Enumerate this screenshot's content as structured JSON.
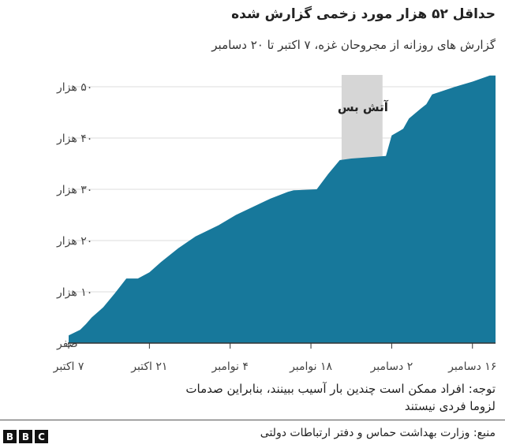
{
  "chart_data": {
    "type": "area",
    "title": "حداقل ۵۲ هزار مورد زخمی گزارش شده",
    "subtitle": "گزارش های روزانه از مجروحان غزه، ۷ اکتبر تا ۲۰ دسامبر",
    "color": "#17789b",
    "xlim": [
      "2023-10-07",
      "2023-12-20"
    ],
    "ylim": [
      0,
      55000
    ],
    "grid": true,
    "y_ticks": [
      {
        "value": 0,
        "label": "صفر"
      },
      {
        "value": 10000,
        "label": "۱۰ هزار"
      },
      {
        "value": 20000,
        "label": "۲۰ هزار"
      },
      {
        "value": 30000,
        "label": "۳۰ هزار"
      },
      {
        "value": 40000,
        "label": "۴۰ هزار"
      },
      {
        "value": 50000,
        "label": "۵۰ هزار"
      }
    ],
    "x_ticks": [
      {
        "date": "2023-10-07",
        "label": "۷ اکتبر"
      },
      {
        "date": "2023-10-21",
        "label": "۲۱ اکتبر"
      },
      {
        "date": "2023-11-04",
        "label": "۴ نوامبر"
      },
      {
        "date": "2023-11-18",
        "label": "۱۸ نوامبر"
      },
      {
        "date": "2023-12-02",
        "label": "۲ دسامبر"
      },
      {
        "date": "2023-12-16",
        "label": "۱۶ دسامبر"
      }
    ],
    "annotation": {
      "label": "آتش بس",
      "start": "2023-11-24",
      "end": "2023-11-30",
      "color": "#d6d6d6"
    },
    "points": [
      [
        "2023-10-07",
        1500
      ],
      [
        "2023-10-09",
        2600
      ],
      [
        "2023-10-10",
        3700
      ],
      [
        "2023-10-11",
        5000
      ],
      [
        "2023-10-13",
        7000
      ],
      [
        "2023-10-15",
        9700
      ],
      [
        "2023-10-17",
        12600
      ],
      [
        "2023-10-19",
        12600
      ],
      [
        "2023-10-21",
        13800
      ],
      [
        "2023-10-23",
        15800
      ],
      [
        "2023-10-26",
        18500
      ],
      [
        "2023-10-29",
        20800
      ],
      [
        "2023-11-02",
        23000
      ],
      [
        "2023-11-05",
        25000
      ],
      [
        "2023-11-08",
        26600
      ],
      [
        "2023-11-11",
        28200
      ],
      [
        "2023-11-14",
        29500
      ],
      [
        "2023-11-15",
        29800
      ],
      [
        "2023-11-19",
        30000
      ],
      [
        "2023-11-21",
        33000
      ],
      [
        "2023-11-23",
        35700
      ],
      [
        "2023-11-25",
        36000
      ],
      [
        "2023-12-01",
        36500
      ],
      [
        "2023-12-02",
        40500
      ],
      [
        "2023-12-04",
        41800
      ],
      [
        "2023-12-05",
        43800
      ],
      [
        "2023-12-07",
        45700
      ],
      [
        "2023-12-08",
        46600
      ],
      [
        "2023-12-09",
        48500
      ],
      [
        "2023-12-13",
        50000
      ],
      [
        "2023-12-16",
        51000
      ],
      [
        "2023-12-19",
        52200
      ],
      [
        "2023-12-20",
        52200
      ]
    ]
  },
  "note": [
    "توجه: افراد ممکن است چندین بار آسیب ببینند، بنابراین صدمات",
    "لزوما فردی نیستند"
  ],
  "source": "منبع: وزارت بهداشت حماس و دفتر ارتباطات دولتی",
  "logo": "BBC"
}
